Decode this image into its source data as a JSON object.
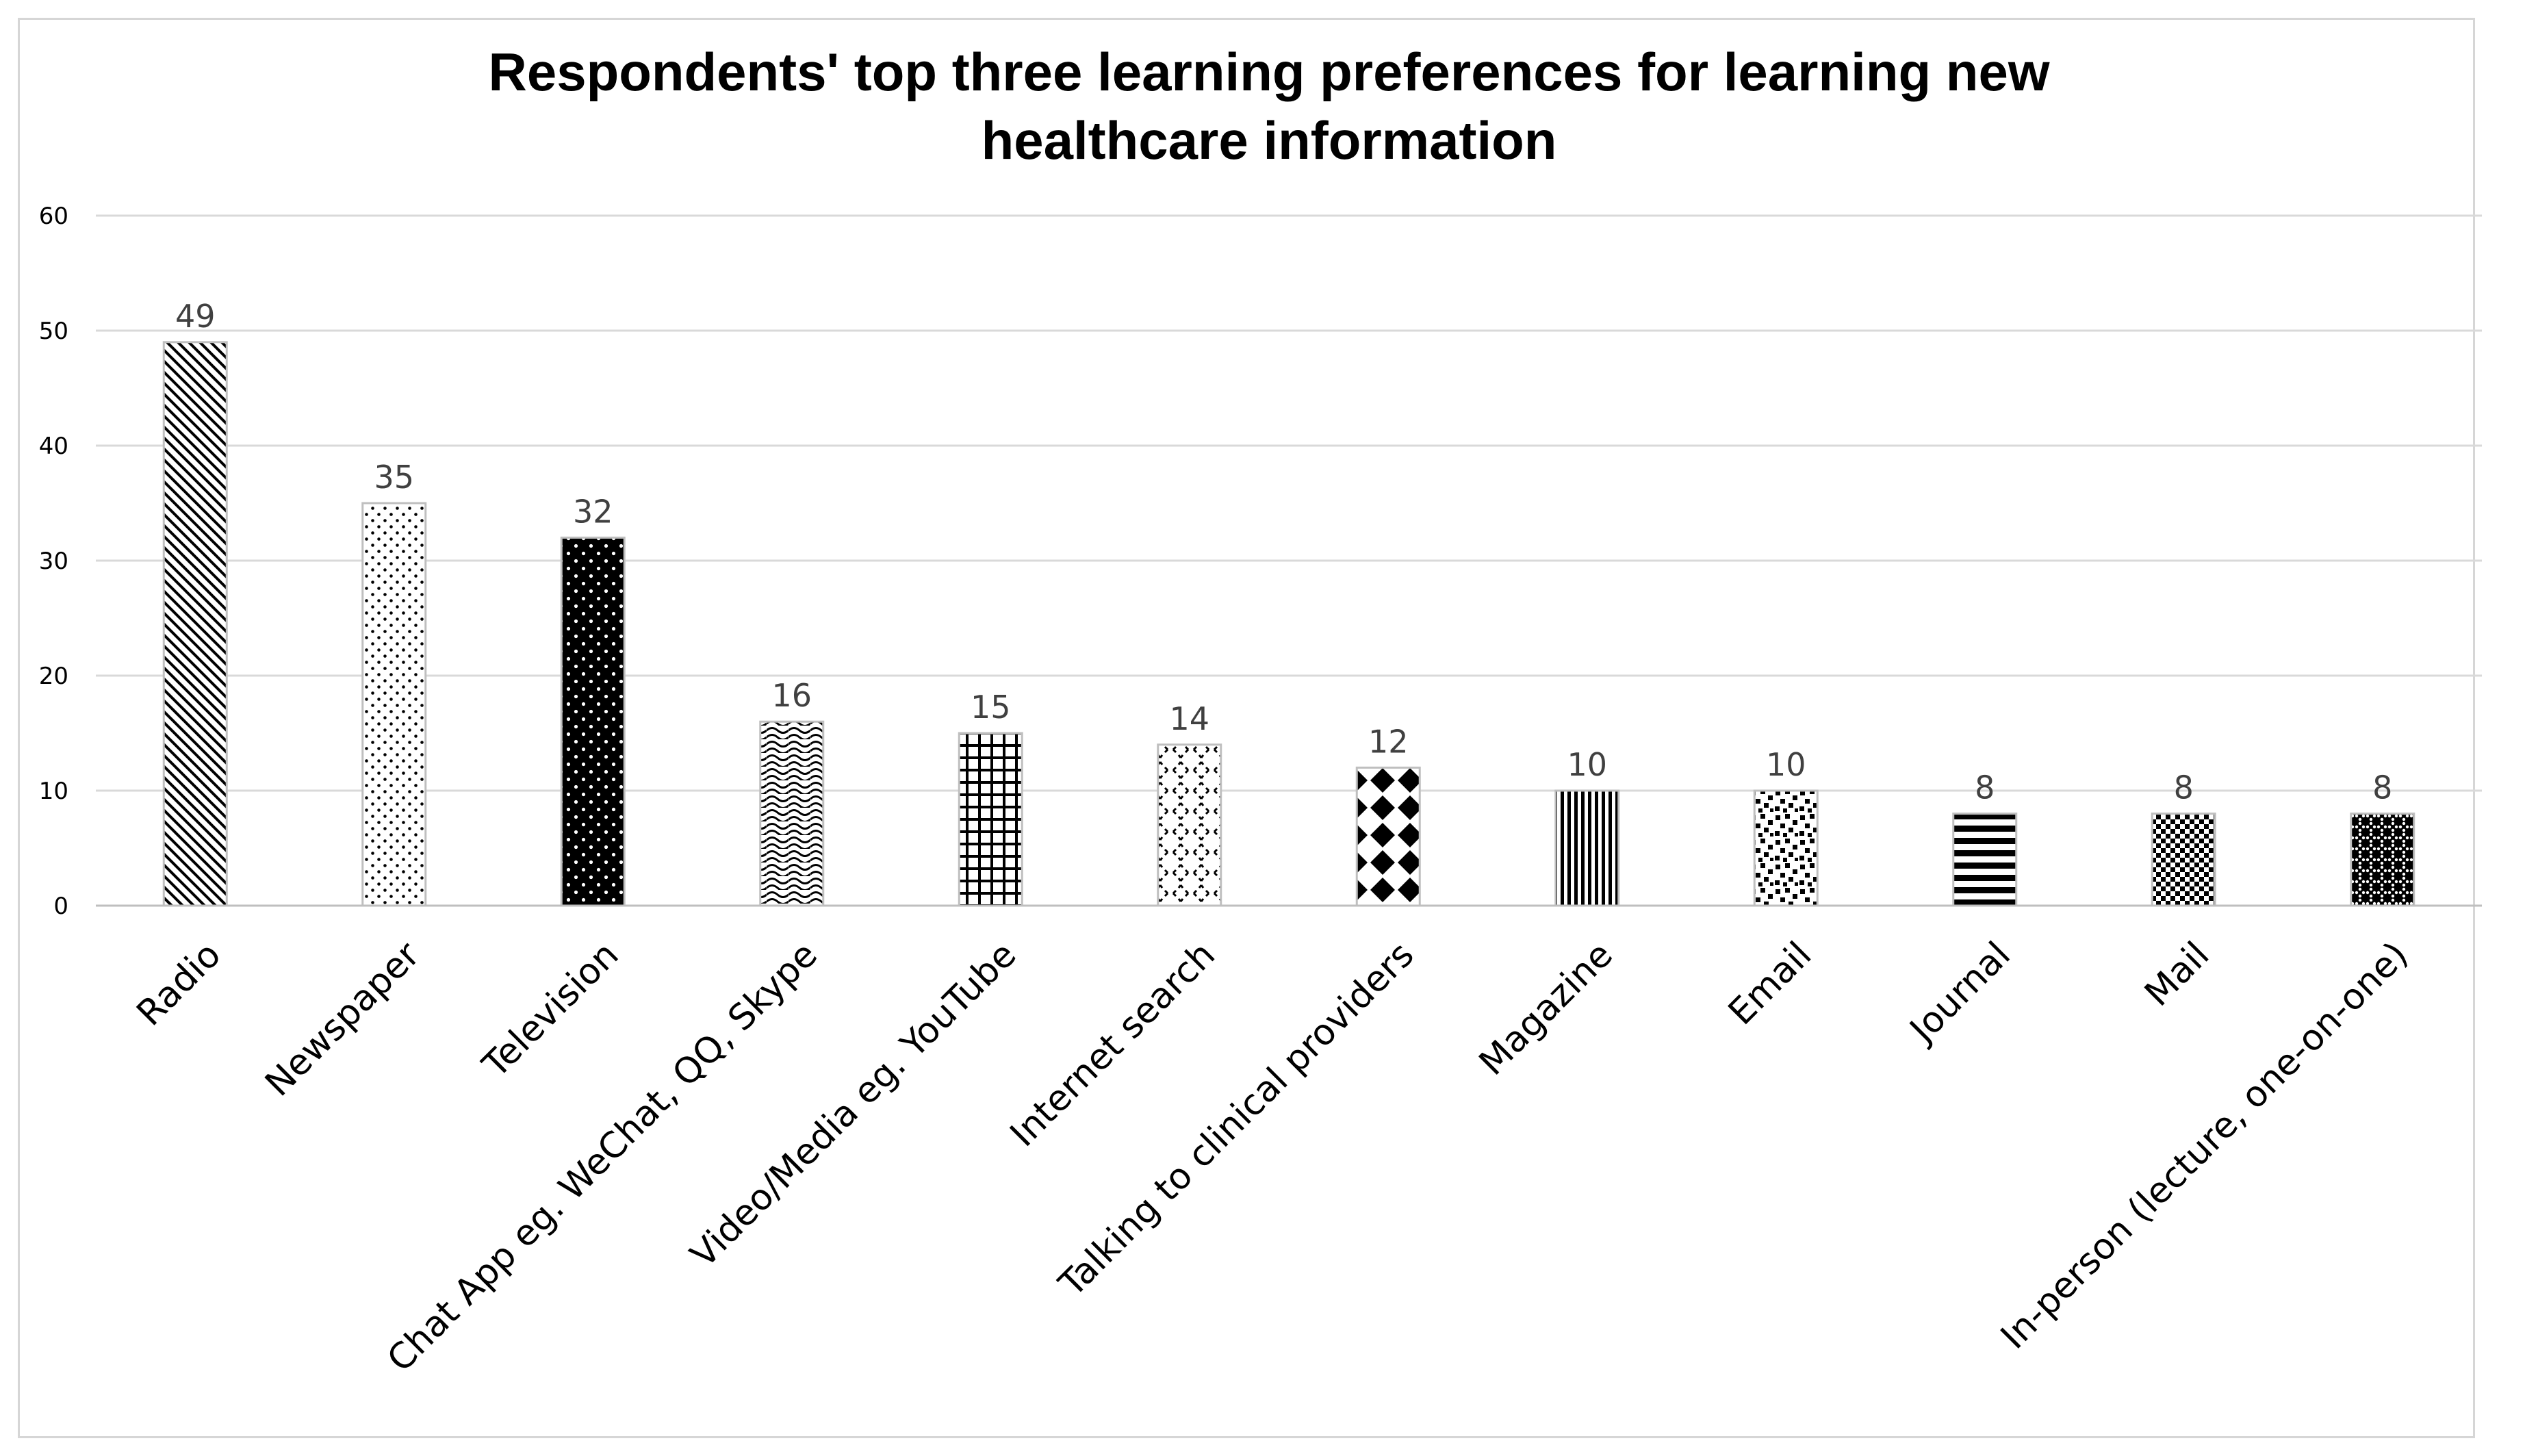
{
  "chart_data": {
    "type": "bar",
    "title_lines": [
      "Respondents' top three learning preferences for learning new",
      "healthcare information"
    ],
    "xlabel": "",
    "ylabel": "",
    "ylim": [
      0,
      60
    ],
    "yticks": [
      0,
      10,
      20,
      30,
      40,
      50,
      60
    ],
    "grid": true,
    "legend": "none",
    "categories": [
      "Radio",
      "Newspaper",
      "Television",
      "Chat App eg. WeChat, QQ, Skype",
      "Video/Media eg. YouTube",
      "Internet search",
      "Talking to clinical providers",
      "Magazine",
      "Email",
      "Journal",
      "Mail",
      "In-person (lecture, one-on-one)"
    ],
    "values": [
      49,
      35,
      32,
      16,
      15,
      14,
      12,
      10,
      10,
      8,
      8,
      8
    ],
    "patterns": [
      "wide-downward-diagonal",
      "sparse-dots",
      "white-dots-on-black",
      "wave",
      "grid",
      "dashed-diamond",
      "solid-diamond",
      "narrow-vertical",
      "random-squares",
      "wide-horizontal",
      "small-checkerboard",
      "dotted-diamond"
    ],
    "colors": {
      "bar_outline": "#bfbfbf",
      "pattern_ink": "#000000",
      "label": "#404040",
      "grid": "#d9d9d9"
    }
  }
}
